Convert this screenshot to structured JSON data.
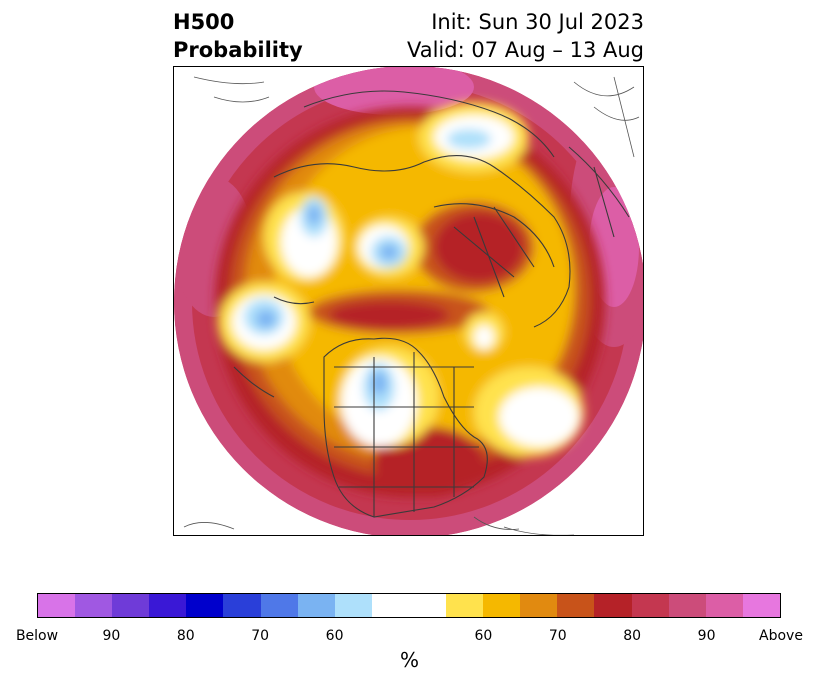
{
  "title": {
    "left_line1": "H500",
    "left_line2": "Probability",
    "right_line1": "Init: Sun 30 Jul 2023",
    "right_line2": "Valid: 07 Aug – 13 Aug"
  },
  "map": {
    "projection": "north-polar-stereographic",
    "content": "500 hPa height anomaly probability, shaded"
  },
  "colorbar": {
    "label": "%",
    "colors": [
      "#d873e8",
      "#a058e2",
      "#6f3bd8",
      "#3a18d6",
      "#0000cc",
      "#2a3fd9",
      "#4f78e8",
      "#7ab3f2",
      "#aee0fb",
      "#ffffff",
      "#ffffff",
      "#ffe24d",
      "#f5b800",
      "#e18a10",
      "#c8531a",
      "#b52228",
      "#c43750",
      "#cc4c7a",
      "#dc5ea6",
      "#e777df"
    ],
    "tick_labels": [
      {
        "text": "Below",
        "index": 0
      },
      {
        "text": "90",
        "index": 2
      },
      {
        "text": "80",
        "index": 4
      },
      {
        "text": "70",
        "index": 6
      },
      {
        "text": "60",
        "index": 8
      },
      {
        "text": "60",
        "index": 12
      },
      {
        "text": "70",
        "index": 14
      },
      {
        "text": "80",
        "index": 16
      },
      {
        "text": "90",
        "index": 18
      },
      {
        "text": "Above",
        "index": 20
      }
    ]
  }
}
